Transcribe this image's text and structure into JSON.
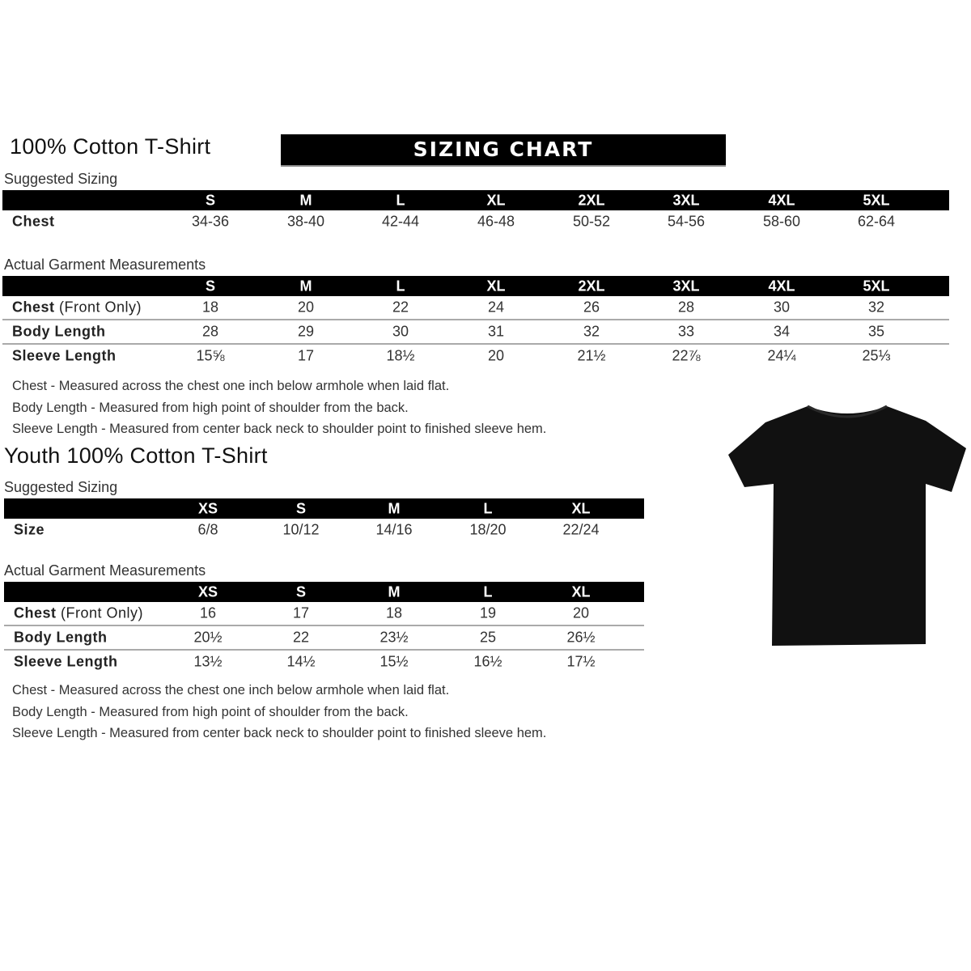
{
  "adult": {
    "title": "100% Cotton T-Shirt",
    "banner": "SIZING CHART",
    "suggested_label": "Suggested Sizing",
    "actual_label": "Actual Garment Measurements",
    "sizes": [
      "S",
      "M",
      "L",
      "XL",
      "2XL",
      "3XL",
      "4XL",
      "5XL"
    ],
    "suggested_rows": [
      {
        "label": "Chest",
        "values": [
          "34-36",
          "38-40",
          "42-44",
          "46-48",
          "50-52",
          "54-56",
          "58-60",
          "62-64"
        ]
      }
    ],
    "actual_rows": [
      {
        "label": "Chest",
        "label_note": "(Front Only)",
        "values": [
          "18",
          "20",
          "22",
          "24",
          "26",
          "28",
          "30",
          "32"
        ]
      },
      {
        "label": "Body Length",
        "values": [
          "28",
          "29",
          "30",
          "31",
          "32",
          "33",
          "34",
          "35"
        ]
      },
      {
        "label": "Sleeve Length",
        "values": [
          "15⅝",
          "17",
          "18½",
          "20",
          "21½",
          "22⅞",
          "24¼",
          "25⅓"
        ]
      }
    ],
    "notes": [
      "Chest - Measured across the chest one inch below armhole when laid flat.",
      "Body Length - Measured from high point of shoulder from the back.",
      "Sleeve Length - Measured from center back neck to shoulder point to finished sleeve hem."
    ]
  },
  "youth": {
    "title": "Youth 100% Cotton T-Shirt",
    "suggested_label": "Suggested Sizing",
    "actual_label": "Actual Garment Measurements",
    "sizes": [
      "XS",
      "S",
      "M",
      "L",
      "XL"
    ],
    "suggested_rows": [
      {
        "label": "Size",
        "values": [
          "6/8",
          "10/12",
          "14/16",
          "18/20",
          "22/24"
        ]
      }
    ],
    "actual_rows": [
      {
        "label": "Chest",
        "label_note": "(Front Only)",
        "values": [
          "16",
          "17",
          "18",
          "19",
          "20"
        ]
      },
      {
        "label": "Body Length",
        "values": [
          "20½",
          "22",
          "23½",
          "25",
          "26½"
        ]
      },
      {
        "label": "Sleeve Length",
        "values": [
          "13½",
          "14½",
          "15½",
          "16½",
          "17½"
        ]
      }
    ],
    "notes": [
      "Chest - Measured across the chest one inch below armhole when laid flat.",
      "Body Length - Measured from high point of shoulder from the back.",
      "Sleeve Length - Measured from center back neck to shoulder point to finished sleeve hem."
    ]
  },
  "image": {
    "icon": "t-shirt-icon",
    "color": "#111111"
  }
}
